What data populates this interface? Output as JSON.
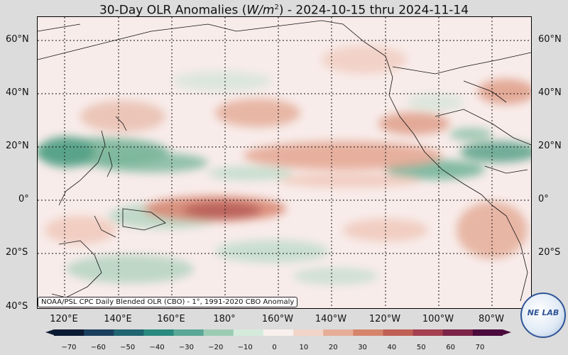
{
  "title": {
    "prefix": "30-Day OLR Anomalies (",
    "unit_base": "W/m",
    "unit_exp": "2",
    "suffix": ") - 2024-10-15 thru 2024-11-14"
  },
  "lat_labels": [
    "60°N",
    "40°N",
    "20°N",
    "0°",
    "20°S",
    "40°S"
  ],
  "lon_labels": [
    "120°E",
    "140°E",
    "160°E",
    "180°",
    "160°W",
    "140°W",
    "120°W",
    "100°W",
    "80°W"
  ],
  "credit": "NOAA/PSL CPC Daily Blended OLR (CBO) - 1°, 1991-2020 CBO Anomaly",
  "colorbar": {
    "ticks": [
      "−70",
      "−60",
      "−50",
      "−40",
      "−30",
      "−20",
      "−10",
      "0",
      "10",
      "20",
      "30",
      "40",
      "50",
      "60",
      "70"
    ],
    "colors": [
      "#0b1a33",
      "#1a3f5e",
      "#1f6470",
      "#2a8a7f",
      "#5aa896",
      "#9ccbb4",
      "#d4ebdc",
      "#f8f0ec",
      "#f2d5c9",
      "#e6ad98",
      "#d6856d",
      "#c06054",
      "#a4404f",
      "#7c2348",
      "#4a0a3c"
    ]
  },
  "logo_text": "NE LAB"
}
